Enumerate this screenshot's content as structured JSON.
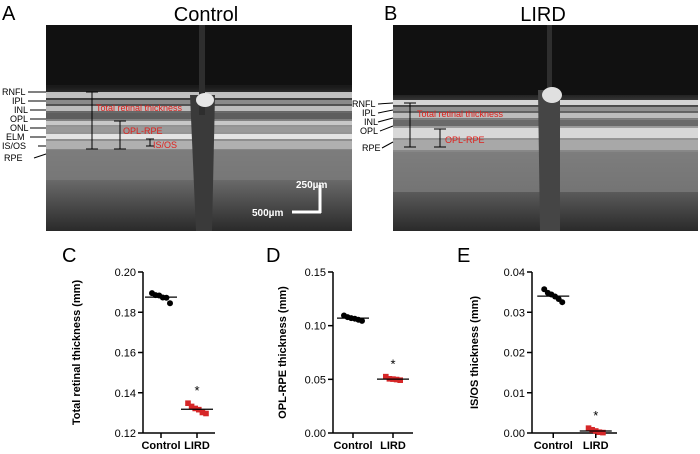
{
  "panel_a": {
    "letter": "A",
    "title": "Control",
    "layers": [
      "RNFL",
      "IPL",
      "INL",
      "OPL",
      "ONL",
      "ELM",
      "IS/OS",
      "RPE"
    ],
    "annotations": {
      "total": "Total retinal thickness",
      "oplrpe": "OPL-RPE",
      "isos": "IS/OS"
    },
    "scale_vertical": "250µm",
    "scale_horizontal": "500µm"
  },
  "panel_b": {
    "letter": "B",
    "title": "LIRD",
    "layers": [
      "RNFL",
      "IPL",
      "INL",
      "OPL",
      "RPE"
    ],
    "annotations": {
      "total": "Total retinal thickness",
      "oplrpe": "OPL-RPE"
    }
  },
  "colors": {
    "control": "#000000",
    "lird": "#d62728",
    "annotation": "#e0201c"
  },
  "chart_data": [
    {
      "panel": "C",
      "type": "scatter",
      "ylabel": "Total retinal thickness (mm)",
      "categories": [
        "Control",
        "LIRD"
      ],
      "ylim": [
        0.12,
        0.2
      ],
      "yticks": [
        "0.12",
        "0.14",
        "0.16",
        "0.18",
        "0.20"
      ],
      "series": [
        {
          "values": [
            0.1895,
            0.1885,
            0.1883,
            0.1873,
            0.1872,
            0.1845
          ],
          "mean": 0.1875
        },
        {
          "values": [
            0.1348,
            0.1332,
            0.1322,
            0.1316,
            0.1302,
            0.1297
          ],
          "mean": 0.1318
        }
      ],
      "significance": "*"
    },
    {
      "panel": "D",
      "type": "scatter",
      "ylabel": "OPL-RPE thickness (mm)",
      "categories": [
        "Control",
        "LIRD"
      ],
      "ylim": [
        0,
        0.15
      ],
      "yticks": [
        "0.00",
        "0.05",
        "0.10",
        "0.15"
      ],
      "series": [
        {
          "values": [
            0.1095,
            0.108,
            0.107,
            0.1065,
            0.1055,
            0.1045
          ],
          "mean": 0.107
        },
        {
          "values": [
            0.0525,
            0.0505,
            0.0502,
            0.0498,
            0.0492
          ],
          "mean": 0.0502
        }
      ],
      "significance": "*"
    },
    {
      "panel": "E",
      "type": "scatter",
      "ylabel": "IS/OS thickness (mm)",
      "categories": [
        "Control",
        "LIRD"
      ],
      "ylim": [
        0,
        0.04
      ],
      "yticks": [
        "0.00",
        "0.01",
        "0.02",
        "0.03",
        "0.04"
      ],
      "series": [
        {
          "values": [
            0.0357,
            0.0348,
            0.0344,
            0.0339,
            0.0333,
            0.0325
          ],
          "mean": 0.034
        },
        {
          "values": [
            0.0012,
            0.0008,
            0.0005,
            0.0002,
            0.0001
          ],
          "mean": 0.0005
        }
      ],
      "significance": "*"
    }
  ]
}
